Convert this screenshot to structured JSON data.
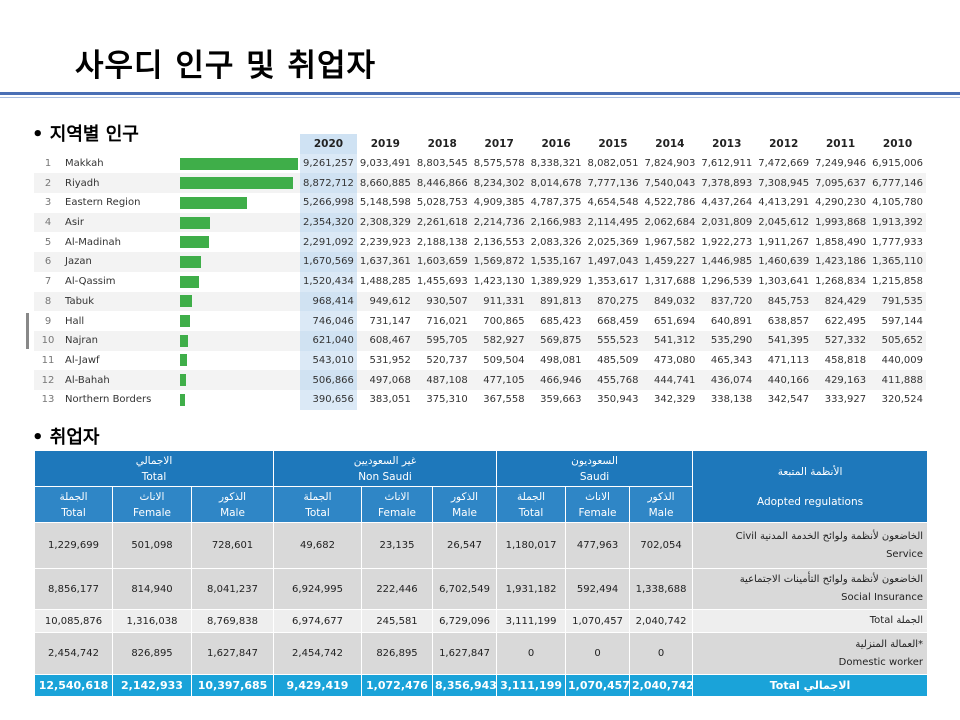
{
  "title": "사우디 인구 및 취업자",
  "section1": "• 지역별 인구",
  "section2": "• 취업자",
  "population": {
    "years": [
      "2020",
      "2019",
      "2018",
      "2017",
      "2016",
      "2015",
      "2014",
      "2013",
      "2012",
      "2011",
      "2010"
    ],
    "max": 9261257,
    "rows": [
      {
        "idx": "1",
        "name": "Makkah",
        "v": [
          "9,261,257",
          "9,033,491",
          "8,803,545",
          "8,575,578",
          "8,338,321",
          "8,082,051",
          "7,824,903",
          "7,612,911",
          "7,472,669",
          "7,249,946",
          "6,915,006"
        ],
        "n": 9261257
      },
      {
        "idx": "2",
        "name": "Riyadh",
        "v": [
          "8,872,712",
          "8,660,885",
          "8,446,866",
          "8,234,302",
          "8,014,678",
          "7,777,136",
          "7,540,043",
          "7,378,893",
          "7,308,945",
          "7,095,637",
          "6,777,146"
        ],
        "n": 8872712
      },
      {
        "idx": "3",
        "name": "Eastern Region",
        "v": [
          "5,266,998",
          "5,148,598",
          "5,028,753",
          "4,909,385",
          "4,787,375",
          "4,654,548",
          "4,522,786",
          "4,437,264",
          "4,413,291",
          "4,290,230",
          "4,105,780"
        ],
        "n": 5266998
      },
      {
        "idx": "4",
        "name": "Asir",
        "v": [
          "2,354,320",
          "2,308,329",
          "2,261,618",
          "2,214,736",
          "2,166,983",
          "2,114,495",
          "2,062,684",
          "2,031,809",
          "2,045,612",
          "1,993,868",
          "1,913,392"
        ],
        "n": 2354320
      },
      {
        "idx": "5",
        "name": "Al-Madinah",
        "v": [
          "2,291,092",
          "2,239,923",
          "2,188,138",
          "2,136,553",
          "2,083,326",
          "2,025,369",
          "1,967,582",
          "1,922,273",
          "1,911,267",
          "1,858,490",
          "1,777,933"
        ],
        "n": 2291092
      },
      {
        "idx": "6",
        "name": "Jazan",
        "v": [
          "1,670,569",
          "1,637,361",
          "1,603,659",
          "1,569,872",
          "1,535,167",
          "1,497,043",
          "1,459,227",
          "1,446,985",
          "1,460,639",
          "1,423,186",
          "1,365,110"
        ],
        "n": 1670569
      },
      {
        "idx": "7",
        "name": "Al-Qassim",
        "v": [
          "1,520,434",
          "1,488,285",
          "1,455,693",
          "1,423,130",
          "1,389,929",
          "1,353,617",
          "1,317,688",
          "1,296,539",
          "1,303,641",
          "1,268,834",
          "1,215,858"
        ],
        "n": 1520434
      },
      {
        "idx": "8",
        "name": "Tabuk",
        "v": [
          "968,414",
          "949,612",
          "930,507",
          "911,331",
          "891,813",
          "870,275",
          "849,032",
          "837,720",
          "845,753",
          "824,429",
          "791,535"
        ],
        "n": 968414
      },
      {
        "idx": "9",
        "name": "Hall",
        "v": [
          "746,046",
          "731,147",
          "716,021",
          "700,865",
          "685,423",
          "668,459",
          "651,694",
          "640,891",
          "638,857",
          "622,495",
          "597,144"
        ],
        "n": 746046
      },
      {
        "idx": "10",
        "name": "Najran",
        "v": [
          "621,040",
          "608,467",
          "595,705",
          "582,927",
          "569,875",
          "555,523",
          "541,312",
          "535,290",
          "541,395",
          "527,332",
          "505,652"
        ],
        "n": 621040
      },
      {
        "idx": "11",
        "name": "Al-Jawf",
        "v": [
          "543,010",
          "531,952",
          "520,737",
          "509,504",
          "498,081",
          "485,509",
          "473,080",
          "465,343",
          "471,113",
          "458,818",
          "440,009"
        ],
        "n": 543010
      },
      {
        "idx": "12",
        "name": "Al-Bahah",
        "v": [
          "506,866",
          "497,068",
          "487,108",
          "477,105",
          "466,946",
          "455,768",
          "444,741",
          "436,074",
          "440,166",
          "429,163",
          "411,888"
        ],
        "n": 506866
      },
      {
        "idx": "13",
        "name": "Northern Borders",
        "v": [
          "390,656",
          "383,051",
          "375,310",
          "367,558",
          "359,663",
          "350,943",
          "342,329",
          "338,138",
          "342,547",
          "333,927",
          "320,524"
        ],
        "n": 390656
      }
    ]
  },
  "employment": {
    "groups": [
      {
        "ar": "الاجمالي",
        "en": "Total"
      },
      {
        "ar": "غير السعوديين",
        "en": "Non Saudi"
      },
      {
        "ar": "السعوديون",
        "en": "Saudi"
      }
    ],
    "reg_header": {
      "ar": "الأنظمة المتبعة",
      "en": "Adopted regulations"
    },
    "subs": [
      {
        "ar": "الجملة",
        "en": "Total"
      },
      {
        "ar": "الاناث",
        "en": "Female"
      },
      {
        "ar": "الذكور",
        "en": "Male"
      },
      {
        "ar": "الجملة",
        "en": "Total"
      },
      {
        "ar": "الاناث",
        "en": "Female"
      },
      {
        "ar": "الذكور",
        "en": "Male"
      },
      {
        "ar": "الجملة",
        "en": "Total"
      },
      {
        "ar": "الاناث",
        "en": "Female"
      },
      {
        "ar": "الذكور",
        "en": "Male"
      }
    ],
    "rows": [
      {
        "v": [
          "1,229,699",
          "501,098",
          "728,601",
          "49,682",
          "23,135",
          "26,547",
          "1,180,017",
          "477,963",
          "702,054"
        ],
        "reg1": "Civil الخاضعون لأنظمة ولوائح الخدمة المدنية",
        "reg2": "Service",
        "style": "grey"
      },
      {
        "v": [
          "8,856,177",
          "814,940",
          "8,041,237",
          "6,924,995",
          "222,446",
          "6,702,549",
          "1,931,182",
          "592,494",
          "1,338,688"
        ],
        "reg1": "الخاضعون لأنظمة ولوائح التأمينات الاجتماعية",
        "reg2": "Social Insurance",
        "style": "grey"
      },
      {
        "v": [
          "10,085,876",
          "1,316,038",
          "8,769,838",
          "6,974,677",
          "245,581",
          "6,729,096",
          "3,111,199",
          "1,070,457",
          "2,040,742"
        ],
        "reg1": "Total  الجملة",
        "reg2": "",
        "style": "light"
      },
      {
        "v": [
          "2,454,742",
          "826,895",
          "1,627,847",
          "2,454,742",
          "826,895",
          "1,627,847",
          "0",
          "0",
          "0"
        ],
        "reg1": "العمالة المنزلية*",
        "reg2": "Domestic worker",
        "style": "grey"
      }
    ],
    "total": {
      "v": [
        "12,540,618",
        "2,142,933",
        "10,397,685",
        "9,429,419",
        "1,072,476",
        "8,356,943",
        "3,111,199",
        "1,070,457",
        "2,040,742"
      ],
      "label": "Total      الاجمالي"
    }
  }
}
